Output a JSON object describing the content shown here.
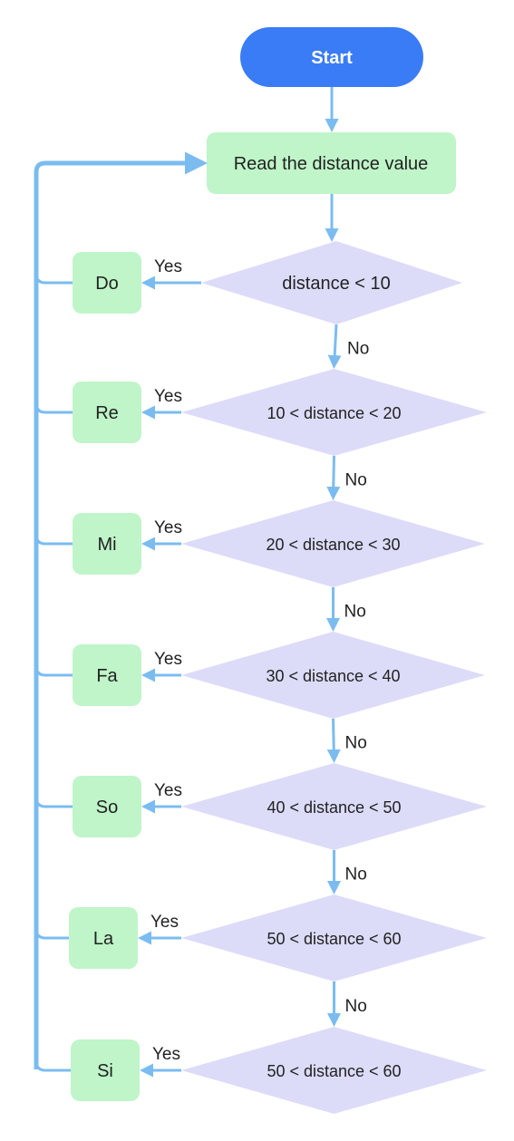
{
  "flowchart": {
    "start_label": "Start",
    "read_label": "Read the distance value",
    "yes_label": "Yes",
    "no_label": "No",
    "decisions": [
      {
        "condition": "distance < 10",
        "note": "Do"
      },
      {
        "condition": "10 < distance < 20",
        "note": "Re"
      },
      {
        "condition": "20 < distance < 30",
        "note": "Mi"
      },
      {
        "condition": "30 < distance < 40",
        "note": "Fa"
      },
      {
        "condition": "40 < distance < 50",
        "note": "So"
      },
      {
        "condition": "50 < distance < 60",
        "note": "La"
      },
      {
        "condition": "50 < distance < 60",
        "note": "Si"
      }
    ]
  },
  "colors": {
    "start_fill": "#3a7cf5",
    "process_fill": "#bff5c8",
    "decision_fill": "#dcdcf9",
    "note_fill": "#bff5c8",
    "connector": "#7bbcf0"
  }
}
